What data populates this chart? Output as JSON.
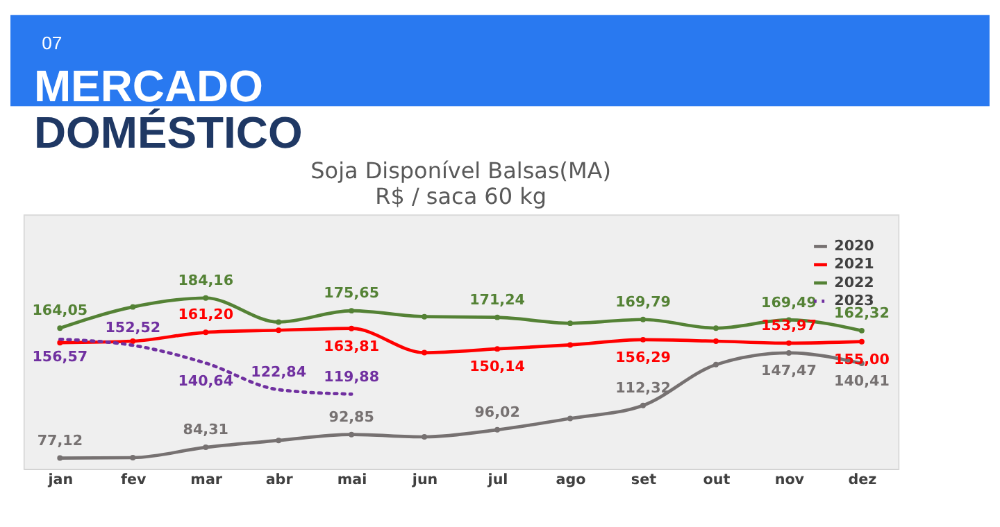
{
  "chart_data": {
    "type": "line",
    "title": "Soja Disponível Balsas(MA)",
    "subtitle": "R$ / saca 60 kg",
    "annotations": [
      "07",
      "MERCADO",
      "DOMÉSTICO"
    ],
    "categories": [
      "jan",
      "fev",
      "mar",
      "abr",
      "mai",
      "jun",
      "jul",
      "ago",
      "set",
      "out",
      "nov",
      "dez"
    ],
    "ylim": [
      70,
      240
    ],
    "tick_labels": "x",
    "grid": false,
    "legend": "top right",
    "series": [
      {
        "name": "2020",
        "color": "#767171",
        "marker": "circle",
        "line_style": "solid",
        "values": [
          77.12,
          77.4,
          84.31,
          88.9,
          92.85,
          91.3,
          96.02,
          103.6,
          112.32,
          139.6,
          147.47,
          140.41
        ],
        "value_labels": [
          "77,12",
          null,
          "84,31",
          null,
          "92,85",
          null,
          "96,02",
          null,
          "112,32",
          null,
          "147,47",
          "140,41"
        ]
      },
      {
        "name": "2021",
        "color": "#ff0000",
        "marker": "circle",
        "line_style": "solid",
        "values": [
          154.3,
          155.3,
          161.2,
          162.6,
          163.81,
          147.6,
          150.14,
          152.8,
          156.29,
          155.3,
          153.97,
          155.0
        ],
        "value_labels": [
          null,
          null,
          "161,20",
          null,
          "163,81",
          null,
          "150,14",
          null,
          "156,29",
          null,
          "153,97",
          "155,00"
        ]
      },
      {
        "name": "2022",
        "color": "#548235",
        "marker": "circle",
        "line_style": "solid",
        "values": [
          164.05,
          178.2,
          184.16,
          168.1,
          175.65,
          171.7,
          171.24,
          167.3,
          169.79,
          164.0,
          169.49,
          162.32
        ],
        "value_labels": [
          "164,05",
          null,
          "184,16",
          null,
          "175,65",
          null,
          "171,24",
          null,
          "169,79",
          null,
          "169,49",
          "162,32"
        ]
      },
      {
        "name": "2023",
        "color": "#7030a0",
        "marker": "none",
        "line_style": "dotted",
        "values": [
          156.57,
          152.52,
          140.64,
          122.84,
          119.88,
          null,
          null,
          null,
          null,
          null,
          null,
          null
        ],
        "value_labels": [
          "156,57",
          "152,52",
          "140,64",
          "122,84",
          "119,88",
          null,
          null,
          null,
          null,
          null,
          null,
          null
        ]
      }
    ]
  }
}
